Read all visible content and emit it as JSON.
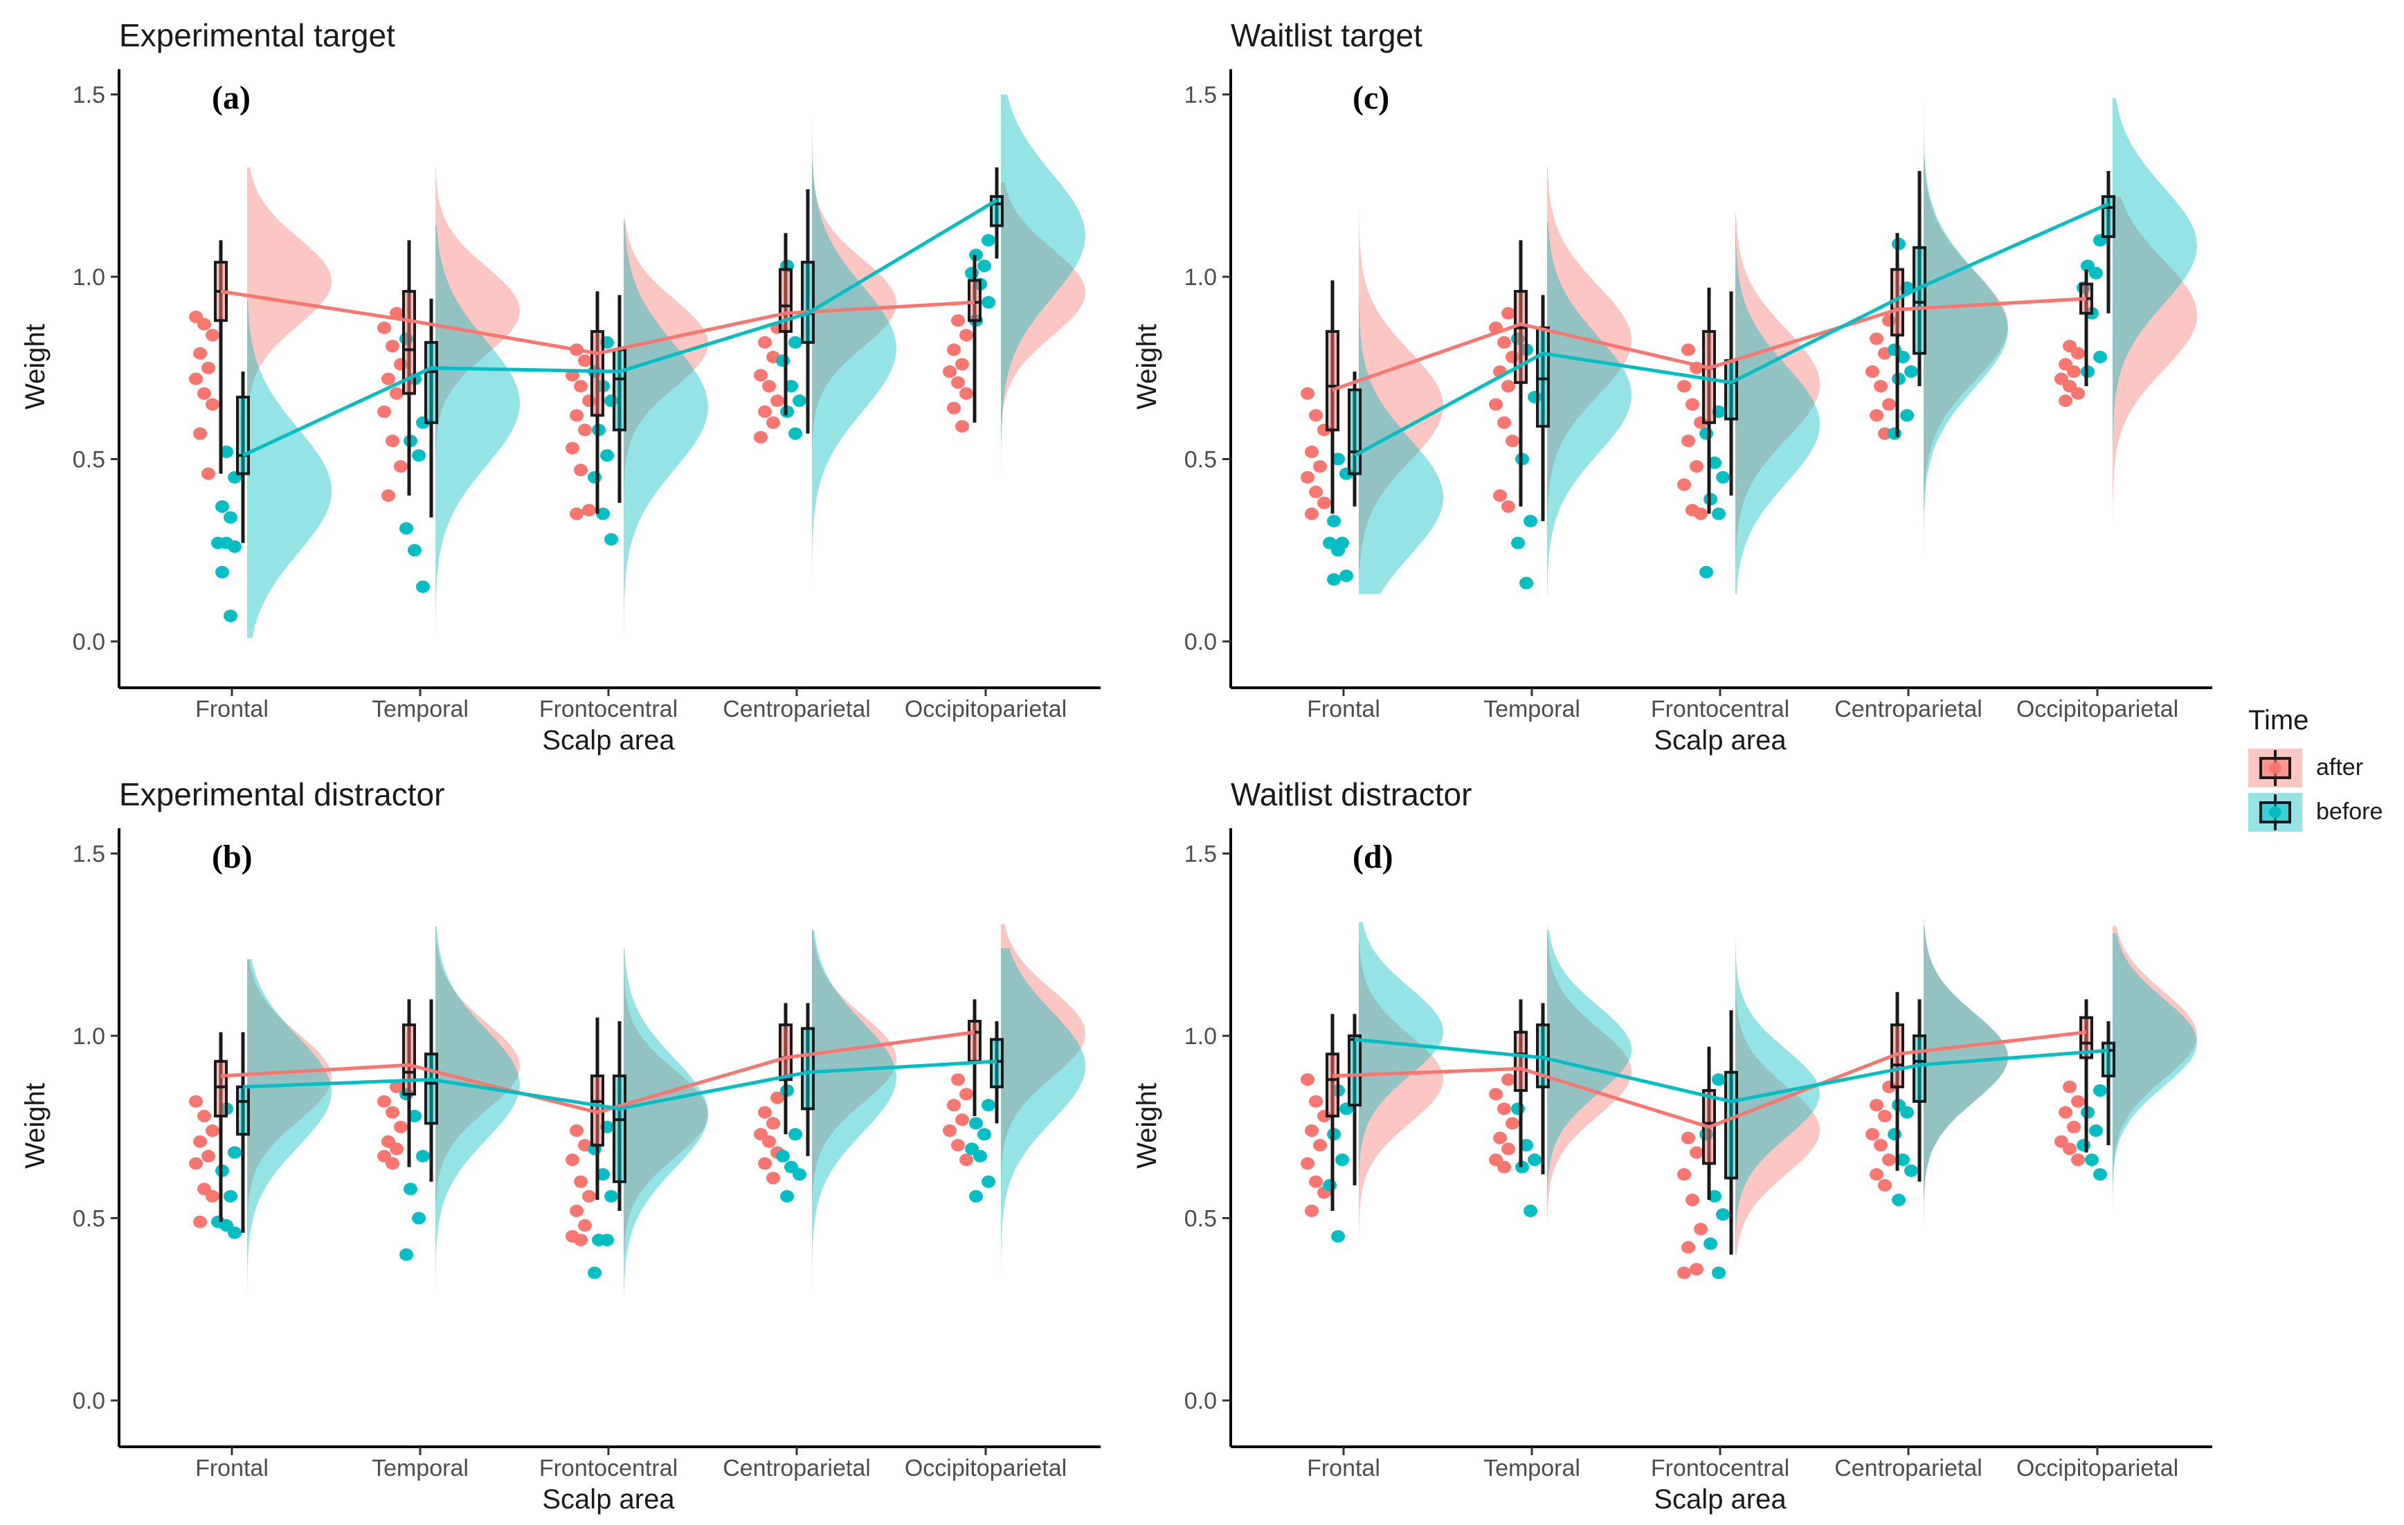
{
  "legend": {
    "title": "Time",
    "items": [
      {
        "label": "after",
        "color": "#F8766D"
      },
      {
        "label": "before",
        "color": "#00BFC4"
      }
    ]
  },
  "chart_data": [
    {
      "type": "raincloud",
      "title": "Experimental target",
      "panel_label": "(a)",
      "xlabel": "Scalp area",
      "ylabel": "Weight",
      "ylim": [
        -0.05,
        1.6
      ],
      "yticks": [
        "0.0",
        "0.5",
        "1.0",
        "1.5"
      ],
      "categories": [
        "Frontal",
        "Temporal",
        "Frontocentral",
        "Centroparietal",
        "Occipitoparietal"
      ],
      "series": [
        {
          "name": "after",
          "means": [
            0.96,
            0.88,
            0.79,
            0.9,
            0.93
          ],
          "boxes": [
            [
              0.46,
              0.88,
              0.96,
              1.04,
              1.1
            ],
            [
              0.4,
              0.68,
              0.8,
              0.96,
              1.1
            ],
            [
              0.35,
              0.62,
              0.74,
              0.85,
              0.96
            ],
            [
              0.62,
              0.85,
              0.92,
              1.02,
              1.12
            ],
            [
              0.6,
              0.88,
              0.93,
              0.99,
              1.06
            ]
          ],
          "points": [
            [
              0.89,
              0.87,
              0.84,
              0.79,
              0.75,
              0.72,
              0.68,
              0.65,
              0.57,
              0.46
            ],
            [
              0.9,
              0.86,
              0.81,
              0.76,
              0.72,
              0.68,
              0.63,
              0.55,
              0.48,
              0.4
            ],
            [
              0.8,
              0.77,
              0.73,
              0.7,
              0.66,
              0.62,
              0.58,
              0.53,
              0.47,
              0.36,
              0.35
            ],
            [
              0.86,
              0.82,
              0.78,
              0.73,
              0.7,
              0.66,
              0.63,
              0.6,
              0.56
            ],
            [
              0.88,
              0.84,
              0.8,
              0.76,
              0.74,
              0.71,
              0.68,
              0.64,
              0.59
            ]
          ],
          "density": {
            "mode": 0.96,
            "sd": 0.12,
            "min": 0.46,
            "max": 1.32
          }
        },
        {
          "name": "before",
          "means": [
            0.51,
            0.75,
            0.74,
            0.9,
            1.21
          ],
          "boxes": [
            [
              0.27,
              0.46,
              0.51,
              0.67,
              0.74
            ],
            [
              0.34,
              0.6,
              0.74,
              0.82,
              0.94
            ],
            [
              0.38,
              0.58,
              0.72,
              0.8,
              0.95
            ],
            [
              0.57,
              0.82,
              0.9,
              1.04,
              1.24
            ],
            [
              1.05,
              1.14,
              1.2,
              1.22,
              1.3
            ]
          ],
          "points": [
            [
              0.52,
              0.45,
              0.37,
              0.34,
              0.27,
              0.27,
              0.26,
              0.19,
              0.07
            ],
            [
              0.83,
              0.72,
              0.6,
              0.55,
              0.51,
              0.31,
              0.25,
              0.15
            ],
            [
              0.82,
              0.74,
              0.7,
              0.66,
              0.58,
              0.51,
              0.45,
              0.35,
              0.28
            ],
            [
              1.03,
              0.82,
              0.77,
              0.7,
              0.66,
              0.63,
              0.57
            ],
            [
              1.1,
              1.06,
              1.03,
              1.01,
              0.98,
              0.93,
              0.88
            ]
          ],
          "density": {
            "mode": 0.58,
            "sd": 0.17,
            "min": 0.01,
            "max": 1.17
          }
        }
      ]
    },
    {
      "type": "raincloud",
      "title": "Waitlist target",
      "panel_label": "(c)",
      "xlabel": "Scalp area",
      "ylabel": "Weight",
      "ylim": [
        -0.05,
        1.6
      ],
      "yticks": [
        "0.0",
        "0.5",
        "1.0",
        "1.5"
      ],
      "categories": [
        "Frontal",
        "Temporal",
        "Frontocentral",
        "Centroparietal",
        "Occipitoparietal"
      ],
      "series": [
        {
          "name": "after",
          "means": [
            0.69,
            0.87,
            0.75,
            0.91,
            0.94
          ],
          "boxes": [
            [
              0.35,
              0.58,
              0.7,
              0.85,
              0.99
            ],
            [
              0.37,
              0.71,
              0.86,
              0.96,
              1.1
            ],
            [
              0.35,
              0.6,
              0.75,
              0.85,
              0.97
            ],
            [
              0.56,
              0.84,
              0.91,
              1.02,
              1.12
            ],
            [
              0.7,
              0.9,
              0.94,
              0.98,
              1.02
            ]
          ],
          "points": [
            [
              0.68,
              0.62,
              0.58,
              0.52,
              0.48,
              0.45,
              0.41,
              0.38,
              0.35
            ],
            [
              0.9,
              0.86,
              0.82,
              0.78,
              0.74,
              0.7,
              0.65,
              0.6,
              0.55,
              0.4,
              0.37
            ],
            [
              0.8,
              0.75,
              0.7,
              0.65,
              0.6,
              0.55,
              0.48,
              0.43,
              0.36,
              0.35
            ],
            [
              0.88,
              0.83,
              0.79,
              0.74,
              0.7,
              0.65,
              0.62,
              0.57
            ],
            [
              0.81,
              0.79,
              0.76,
              0.74,
              0.72,
              0.7,
              0.68,
              0.66
            ]
          ],
          "density": {
            "mode": 0.72,
            "sd": 0.15,
            "min": 0.2,
            "max": 1.25
          }
        },
        {
          "name": "before",
          "means": [
            0.51,
            0.79,
            0.71,
            0.97,
            1.2
          ],
          "boxes": [
            [
              0.37,
              0.46,
              0.52,
              0.69,
              0.74
            ],
            [
              0.33,
              0.59,
              0.72,
              0.86,
              0.95
            ],
            [
              0.4,
              0.61,
              0.71,
              0.77,
              0.96
            ],
            [
              0.7,
              0.79,
              0.93,
              1.08,
              1.29
            ],
            [
              0.9,
              1.11,
              1.19,
              1.22,
              1.29
            ]
          ],
          "points": [
            [
              0.5,
              0.46,
              0.33,
              0.27,
              0.27,
              0.25,
              0.18,
              0.17
            ],
            [
              0.83,
              0.8,
              0.67,
              0.5,
              0.33,
              0.27,
              0.16
            ],
            [
              0.63,
              0.57,
              0.49,
              0.45,
              0.39,
              0.35,
              0.19
            ],
            [
              1.09,
              0.97,
              0.8,
              0.78,
              0.74,
              0.72,
              0.62,
              0.57
            ],
            [
              1.1,
              1.03,
              1.01,
              0.97,
              0.9,
              0.78,
              0.74
            ]
          ],
          "density": {
            "mode": 0.55,
            "sd": 0.16,
            "min": 0.13,
            "max": 1.05
          }
        }
      ]
    },
    {
      "type": "raincloud",
      "title": "Experimental distractor",
      "panel_label": "(b)",
      "xlabel": "Scalp area",
      "ylabel": "Weight",
      "ylim": [
        -0.05,
        1.6
      ],
      "yticks": [
        "0.0",
        "0.5",
        "1.0",
        "1.5"
      ],
      "categories": [
        "Frontal",
        "Temporal",
        "Frontocentral",
        "Centroparietal",
        "Occipitoparietal"
      ],
      "series": [
        {
          "name": "after",
          "means": [
            0.89,
            0.92,
            0.79,
            0.94,
            1.01
          ],
          "boxes": [
            [
              0.49,
              0.78,
              0.86,
              0.93,
              1.01
            ],
            [
              0.64,
              0.84,
              0.9,
              1.03,
              1.1
            ],
            [
              0.55,
              0.7,
              0.82,
              0.89,
              1.05
            ],
            [
              0.73,
              0.88,
              0.94,
              1.03,
              1.09
            ],
            [
              0.78,
              0.93,
              1.01,
              1.04,
              1.1
            ]
          ],
          "points": [
            [
              0.82,
              0.78,
              0.74,
              0.71,
              0.67,
              0.65,
              0.58,
              0.56,
              0.49
            ],
            [
              0.86,
              0.82,
              0.79,
              0.75,
              0.71,
              0.69,
              0.67,
              0.65
            ],
            [
              0.74,
              0.7,
              0.66,
              0.6,
              0.56,
              0.52,
              0.48,
              0.45,
              0.44
            ],
            [
              0.83,
              0.79,
              0.76,
              0.73,
              0.71,
              0.68,
              0.65,
              0.61
            ],
            [
              0.88,
              0.84,
              0.81,
              0.77,
              0.74,
              0.7,
              0.66
            ]
          ],
          "density": {
            "mode": 0.9,
            "sd": 0.12,
            "min": 0.5,
            "max": 1.3
          }
        },
        {
          "name": "before",
          "means": [
            0.86,
            0.88,
            0.8,
            0.9,
            0.93
          ],
          "boxes": [
            [
              0.46,
              0.73,
              0.82,
              0.86,
              1.01
            ],
            [
              0.6,
              0.76,
              0.87,
              0.95,
              1.1
            ],
            [
              0.52,
              0.6,
              0.77,
              0.89,
              1.04
            ],
            [
              0.67,
              0.8,
              0.9,
              1.02,
              1.09
            ],
            [
              0.76,
              0.86,
              0.93,
              0.99,
              1.04
            ]
          ],
          "points": [
            [
              0.8,
              0.68,
              0.63,
              0.56,
              0.49,
              0.48,
              0.46
            ],
            [
              0.84,
              0.78,
              0.67,
              0.58,
              0.5,
              0.4
            ],
            [
              0.75,
              0.69,
              0.62,
              0.56,
              0.44,
              0.44,
              0.35
            ],
            [
              0.85,
              0.73,
              0.67,
              0.64,
              0.62,
              0.56
            ],
            [
              0.81,
              0.76,
              0.73,
              0.69,
              0.67,
              0.6,
              0.56
            ]
          ],
          "density": {
            "mode": 0.84,
            "sd": 0.15,
            "min": 0.29,
            "max": 1.33
          }
        }
      ]
    },
    {
      "type": "raincloud",
      "title": "Waitlist distractor",
      "panel_label": "(d)",
      "xlabel": "Scalp area",
      "ylabel": "Weight",
      "ylim": [
        -0.05,
        1.6
      ],
      "yticks": [
        "0.0",
        "0.5",
        "1.0",
        "1.5"
      ],
      "categories": [
        "Frontal",
        "Temporal",
        "Frontocentral",
        "Centroparietal",
        "Occipitoparietal"
      ],
      "series": [
        {
          "name": "after",
          "means": [
            0.89,
            0.91,
            0.75,
            0.95,
            1.01
          ],
          "boxes": [
            [
              0.52,
              0.78,
              0.88,
              0.95,
              1.06
            ],
            [
              0.64,
              0.85,
              0.95,
              1.01,
              1.1
            ],
            [
              0.55,
              0.65,
              0.76,
              0.85,
              0.97
            ],
            [
              0.63,
              0.86,
              0.92,
              1.03,
              1.12
            ],
            [
              0.68,
              0.94,
              0.98,
              1.05,
              1.1
            ]
          ],
          "points": [
            [
              0.88,
              0.82,
              0.78,
              0.74,
              0.7,
              0.65,
              0.6,
              0.57,
              0.52
            ],
            [
              0.88,
              0.84,
              0.8,
              0.76,
              0.72,
              0.69,
              0.66,
              0.64
            ],
            [
              0.72,
              0.68,
              0.62,
              0.55,
              0.47,
              0.42,
              0.36,
              0.35
            ],
            [
              0.86,
              0.81,
              0.78,
              0.73,
              0.7,
              0.66,
              0.62,
              0.59
            ],
            [
              0.86,
              0.82,
              0.79,
              0.75,
              0.71,
              0.69,
              0.66
            ]
          ],
          "density": {
            "mode": 0.88,
            "sd": 0.12,
            "min": 0.5,
            "max": 1.28
          }
        },
        {
          "name": "before",
          "means": [
            0.99,
            0.94,
            0.82,
            0.92,
            0.96
          ],
          "boxes": [
            [
              0.59,
              0.81,
              0.99,
              1.0,
              1.06
            ],
            [
              0.62,
              0.86,
              0.94,
              1.03,
              1.09
            ],
            [
              0.4,
              0.61,
              0.82,
              0.9,
              1.07
            ],
            [
              0.6,
              0.82,
              0.93,
              1.0,
              1.1
            ],
            [
              0.7,
              0.89,
              0.96,
              0.98,
              1.04
            ]
          ],
          "points": [
            [
              0.85,
              0.8,
              0.73,
              0.66,
              0.59,
              0.45
            ],
            [
              0.8,
              0.7,
              0.66,
              0.64,
              0.52
            ],
            [
              0.88,
              0.73,
              0.56,
              0.51,
              0.43,
              0.35
            ],
            [
              0.81,
              0.79,
              0.73,
              0.66,
              0.63,
              0.55
            ],
            [
              0.85,
              0.79,
              0.74,
              0.7,
              0.66,
              0.62
            ]
          ],
          "density": {
            "mode": 0.98,
            "sd": 0.12,
            "min": 0.5,
            "max": 1.31
          }
        }
      ]
    }
  ]
}
